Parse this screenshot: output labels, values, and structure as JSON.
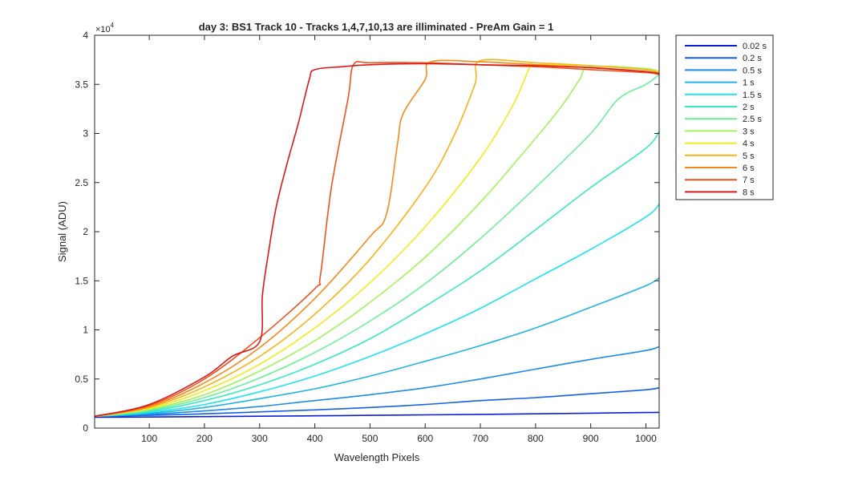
{
  "chart_data": {
    "type": "line",
    "title": "day 3: BS1  Track 10 - Tracks 1,4,7,10,13 are illiminated - PreAm Gain = 1",
    "xlabel": "Wavelength Pixels",
    "ylabel": "Signal (ADU)",
    "y_exponent_label": "×10",
    "y_exponent_power": "4",
    "xlim": [
      1,
      1024
    ],
    "ylim": [
      0,
      40000
    ],
    "x_ticks": [
      100,
      200,
      300,
      400,
      500,
      600,
      700,
      800,
      900,
      1000
    ],
    "x_tick_labels": [
      "100",
      "200",
      "300",
      "400",
      "500",
      "600",
      "700",
      "800",
      "900",
      "1000"
    ],
    "y_ticks": [
      0,
      5000,
      10000,
      15000,
      20000,
      25000,
      30000,
      35000,
      40000
    ],
    "y_tick_labels": [
      "0",
      "0.5",
      "1",
      "1.5",
      "2",
      "2.5",
      "3",
      "3.5",
      "4"
    ],
    "grid": false,
    "legend_position": "outside-top-right",
    "series": [
      {
        "name": "0.02 s",
        "color": "#0a1fd6",
        "x": [
          1,
          100,
          200,
          300,
          400,
          500,
          600,
          700,
          800,
          900,
          1000,
          1024
        ],
        "y": [
          1100,
          1130,
          1170,
          1210,
          1250,
          1300,
          1350,
          1400,
          1450,
          1520,
          1580,
          1600
        ]
      },
      {
        "name": "0.2 s",
        "color": "#1560e6",
        "x": [
          1,
          100,
          200,
          300,
          400,
          500,
          600,
          700,
          800,
          900,
          1000,
          1024
        ],
        "y": [
          1200,
          1300,
          1450,
          1650,
          1850,
          2100,
          2400,
          2800,
          3100,
          3500,
          3900,
          4100
        ]
      },
      {
        "name": "0.5 s",
        "color": "#1a8be8",
        "x": [
          1,
          100,
          200,
          300,
          400,
          500,
          600,
          700,
          800,
          900,
          1000,
          1024
        ],
        "y": [
          1200,
          1400,
          1750,
          2200,
          2800,
          3400,
          4100,
          5000,
          6000,
          7000,
          7900,
          8300
        ]
      },
      {
        "name": "1 s",
        "color": "#20b4e6",
        "x": [
          1,
          100,
          200,
          300,
          400,
          500,
          600,
          700,
          800,
          900,
          1000,
          1024
        ],
        "y": [
          1200,
          1500,
          2100,
          3000,
          4000,
          5300,
          6800,
          8400,
          10200,
          12300,
          14500,
          15300
        ]
      },
      {
        "name": "1.5 s",
        "color": "#1ee3ee",
        "x": [
          1,
          100,
          200,
          300,
          400,
          500,
          600,
          700,
          800,
          900,
          1000,
          1024
        ],
        "y": [
          1200,
          1600,
          2400,
          3700,
          5300,
          7300,
          9600,
          12200,
          15200,
          18200,
          21500,
          22800
        ]
      },
      {
        "name": "2 s",
        "color": "#3ae8c0",
        "x": [
          1,
          100,
          200,
          300,
          400,
          500,
          600,
          700,
          800,
          900,
          1000,
          1024
        ],
        "y": [
          1200,
          1700,
          2800,
          4400,
          6500,
          9100,
          12400,
          16000,
          20200,
          24500,
          28500,
          30200
        ]
      },
      {
        "name": "2.5 s",
        "color": "#6cef9a",
        "x": [
          1,
          100,
          200,
          300,
          400,
          500,
          600,
          700,
          800,
          900,
          950,
          1000,
          1024
        ],
        "y": [
          1200,
          1800,
          3100,
          5100,
          7700,
          10900,
          14700,
          19300,
          24500,
          30000,
          33500,
          35000,
          36000
        ]
      },
      {
        "name": "3 s",
        "color": "#a2f35a",
        "x": [
          1,
          100,
          200,
          300,
          400,
          500,
          600,
          700,
          800,
          850,
          880,
          900,
          1000,
          1024
        ],
        "y": [
          1200,
          1900,
          3400,
          5800,
          8900,
          12800,
          17400,
          23000,
          29500,
          33000,
          35500,
          36800,
          36600,
          36300
        ]
      },
      {
        "name": "4 s",
        "color": "#f0ec1c",
        "x": [
          1,
          100,
          200,
          300,
          400,
          500,
          600,
          700,
          760,
          790,
          800,
          900,
          1000,
          1024
        ],
        "y": [
          1200,
          2000,
          3800,
          6500,
          10200,
          14800,
          20500,
          27500,
          33000,
          36800,
          37000,
          36900,
          36500,
          36300
        ]
      },
      {
        "name": "5 s",
        "color": "#f7b418",
        "x": [
          1,
          100,
          200,
          300,
          400,
          500,
          600,
          650,
          690,
          700,
          800,
          900,
          1000,
          1024
        ],
        "y": [
          1200,
          2100,
          4200,
          7300,
          11600,
          17200,
          24500,
          29500,
          35000,
          37400,
          37200,
          36900,
          36500,
          36200
        ]
      },
      {
        "name": "6 s",
        "color": "#f58a1a",
        "x": [
          1,
          100,
          200,
          300,
          400,
          500,
          530,
          550,
          560,
          600,
          610,
          700,
          800,
          900,
          1000,
          1024
        ],
        "y": [
          1200,
          2200,
          4600,
          8200,
          13200,
          19500,
          21800,
          29000,
          32000,
          35500,
          37300,
          37300,
          37000,
          36700,
          36300,
          36100
        ]
      },
      {
        "name": "7 s",
        "color": "#f0521c",
        "x": [
          1,
          100,
          200,
          300,
          400,
          410,
          430,
          460,
          470,
          500,
          600,
          700,
          800,
          900,
          1000,
          1024
        ],
        "y": [
          1200,
          2300,
          5000,
          9200,
          14200,
          15500,
          24500,
          33500,
          37000,
          37200,
          37200,
          37000,
          36800,
          36500,
          36200,
          36000
        ]
      },
      {
        "name": "8 s",
        "color": "#d91818",
        "x": [
          1,
          100,
          200,
          250,
          300,
          305,
          315,
          330,
          350,
          370,
          390,
          400,
          450,
          500,
          600,
          700,
          800,
          900,
          1000,
          1024
        ],
        "y": [
          1200,
          2400,
          5200,
          7300,
          8800,
          13500,
          17500,
          22500,
          27000,
          31000,
          35500,
          36500,
          36800,
          37000,
          37100,
          37000,
          36900,
          36700,
          36300,
          36100
        ]
      }
    ]
  }
}
